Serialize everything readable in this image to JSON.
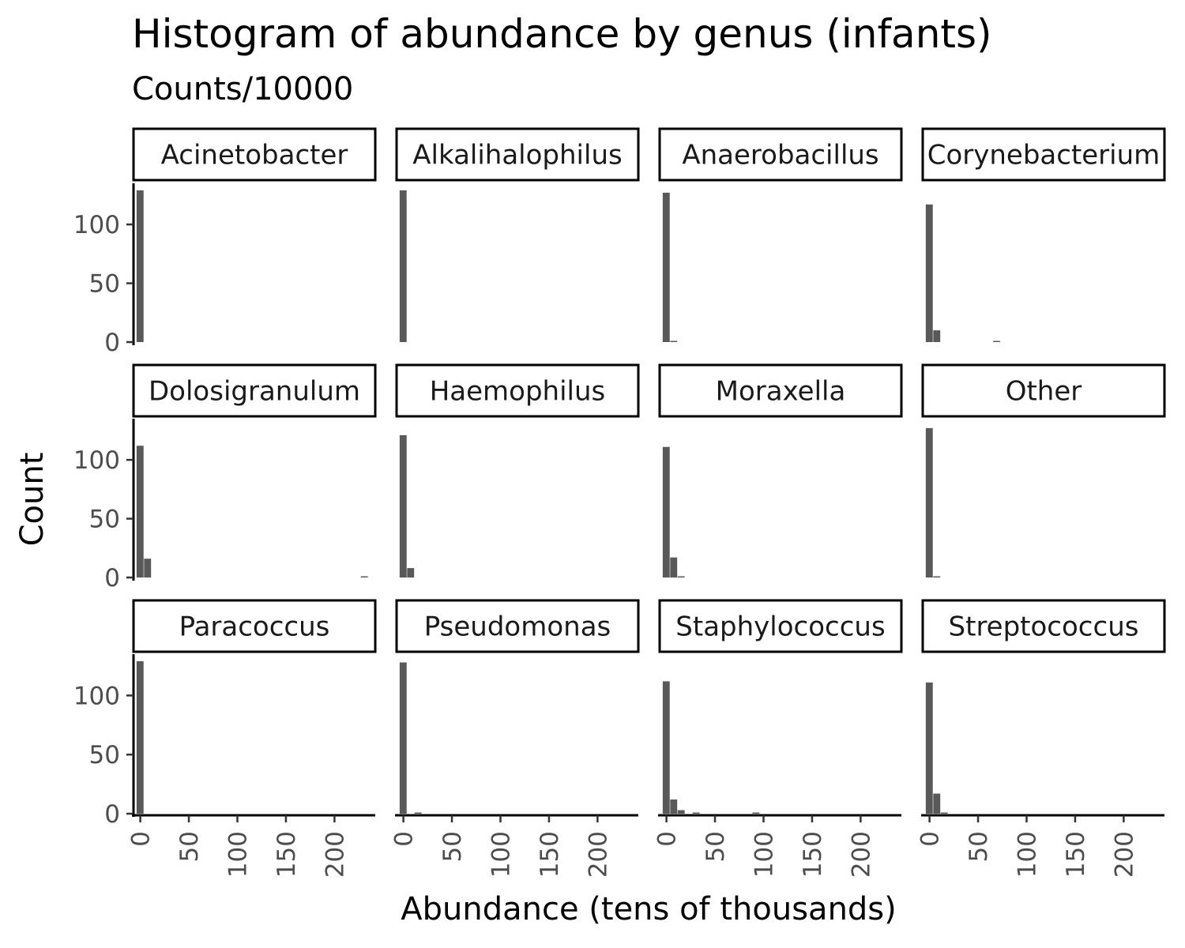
{
  "chart_data": {
    "type": "histogram-facets",
    "title": "Histogram of abundance by genus (infants)",
    "subtitle": "Counts/10000",
    "xlabel": "Abundance (tens of thousands)",
    "ylabel": "Count",
    "xlim": [
      -7,
      242
    ],
    "ylim": [
      0,
      135
    ],
    "x_ticks": [
      0,
      50,
      100,
      150,
      200
    ],
    "y_ticks": [
      0,
      50,
      100
    ],
    "bin_width": 7.7,
    "grid": false,
    "facet_layout": {
      "rows": 3,
      "cols": 4
    },
    "facets": [
      {
        "name": "Acinetobacter",
        "bins": [
          {
            "x": 0,
            "count": 129
          }
        ]
      },
      {
        "name": "Alkalihalophilus",
        "bins": [
          {
            "x": 0,
            "count": 129
          }
        ]
      },
      {
        "name": "Anaerobacillus",
        "bins": [
          {
            "x": 0,
            "count": 127
          },
          {
            "x": 7.7,
            "count": 1
          }
        ]
      },
      {
        "name": "Corynebacterium",
        "bins": [
          {
            "x": 0,
            "count": 117
          },
          {
            "x": 7.7,
            "count": 10
          },
          {
            "x": 69.3,
            "count": 1
          }
        ]
      },
      {
        "name": "Dolosigranulum",
        "bins": [
          {
            "x": 0,
            "count": 112
          },
          {
            "x": 7.7,
            "count": 16
          },
          {
            "x": 231,
            "count": 1
          }
        ]
      },
      {
        "name": "Haemophilus",
        "bins": [
          {
            "x": 0,
            "count": 121
          },
          {
            "x": 7.7,
            "count": 8
          }
        ]
      },
      {
        "name": "Moraxella",
        "bins": [
          {
            "x": 0,
            "count": 111
          },
          {
            "x": 7.7,
            "count": 17
          },
          {
            "x": 15.4,
            "count": 1
          }
        ]
      },
      {
        "name": "Other",
        "bins": [
          {
            "x": 0,
            "count": 127
          },
          {
            "x": 7.7,
            "count": 1
          }
        ]
      },
      {
        "name": "Paracoccus",
        "bins": [
          {
            "x": 0,
            "count": 129
          }
        ]
      },
      {
        "name": "Pseudomonas",
        "bins": [
          {
            "x": 0,
            "count": 128
          },
          {
            "x": 15.4,
            "count": 1
          }
        ]
      },
      {
        "name": "Staphylococcus",
        "bins": [
          {
            "x": 0,
            "count": 112
          },
          {
            "x": 7.7,
            "count": 12
          },
          {
            "x": 15.4,
            "count": 3
          },
          {
            "x": 30.8,
            "count": 1
          },
          {
            "x": 92.4,
            "count": 1
          }
        ]
      },
      {
        "name": "Streptococcus",
        "bins": [
          {
            "x": 0,
            "count": 111
          },
          {
            "x": 7.7,
            "count": 17
          },
          {
            "x": 15.4,
            "count": 1
          }
        ]
      }
    ]
  }
}
